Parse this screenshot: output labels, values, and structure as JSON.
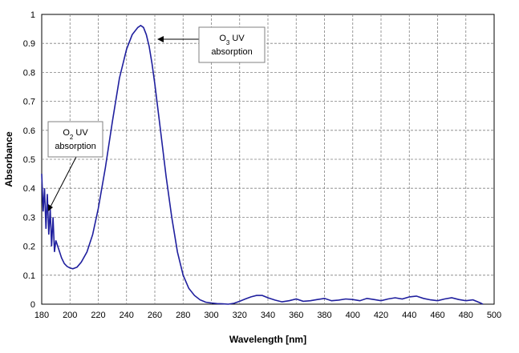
{
  "chart_data": {
    "type": "line",
    "title": "",
    "xlabel": "Wavelength [nm]",
    "ylabel": "Absorbance",
    "xlim": [
      180,
      500
    ],
    "ylim": [
      0,
      1
    ],
    "xticks": [
      180,
      200,
      220,
      240,
      260,
      280,
      300,
      320,
      340,
      360,
      380,
      400,
      420,
      440,
      460,
      480,
      500
    ],
    "yticks": [
      0,
      0.1,
      0.2,
      0.3,
      0.4,
      0.5,
      0.6,
      0.7,
      0.8,
      0.9,
      1
    ],
    "grid": true,
    "line_color": "#1f1f9e",
    "series": [
      {
        "x": [
          180,
          181,
          182,
          183,
          184,
          185,
          186,
          187,
          188,
          189,
          190,
          192,
          194,
          196,
          198,
          200,
          202,
          205,
          208,
          212,
          216,
          220,
          225,
          230,
          235,
          240,
          244,
          248,
          250,
          252,
          254,
          256,
          258,
          260,
          264,
          268,
          272,
          276,
          280,
          284,
          288,
          292,
          296,
          300,
          304,
          308,
          312,
          316,
          320,
          324,
          328,
          332,
          336,
          340,
          345,
          350,
          355,
          360,
          365,
          370,
          375,
          380,
          385,
          390,
          395,
          400,
          405,
          410,
          415,
          420,
          425,
          430,
          435,
          440,
          445,
          450,
          455,
          460,
          465,
          470,
          475,
          480,
          485,
          490,
          492
        ],
        "y": [
          0.45,
          0.32,
          0.4,
          0.26,
          0.38,
          0.24,
          0.33,
          0.2,
          0.3,
          0.18,
          0.22,
          0.19,
          0.16,
          0.14,
          0.13,
          0.125,
          0.122,
          0.128,
          0.145,
          0.18,
          0.24,
          0.33,
          0.47,
          0.63,
          0.78,
          0.88,
          0.93,
          0.955,
          0.962,
          0.955,
          0.93,
          0.89,
          0.83,
          0.76,
          0.6,
          0.44,
          0.3,
          0.18,
          0.1,
          0.055,
          0.03,
          0.015,
          0.007,
          0.004,
          0.002,
          0.001,
          0.0,
          0.003,
          0.01,
          0.018,
          0.025,
          0.03,
          0.03,
          0.022,
          0.014,
          0.008,
          0.012,
          0.018,
          0.01,
          0.012,
          0.016,
          0.02,
          0.012,
          0.014,
          0.018,
          0.016,
          0.012,
          0.02,
          0.016,
          0.012,
          0.018,
          0.022,
          0.018,
          0.025,
          0.028,
          0.02,
          0.015,
          0.012,
          0.018,
          0.022,
          0.016,
          0.012,
          0.015,
          0.005,
          0.0
        ]
      }
    ],
    "annotations": [
      {
        "text": [
          "O",
          "2",
          " UV",
          "absorption"
        ],
        "target": [
          183,
          0.32
        ]
      },
      {
        "text": [
          "O",
          "3",
          " UV",
          "absorption"
        ],
        "target": [
          255,
          0.955
        ]
      }
    ]
  }
}
